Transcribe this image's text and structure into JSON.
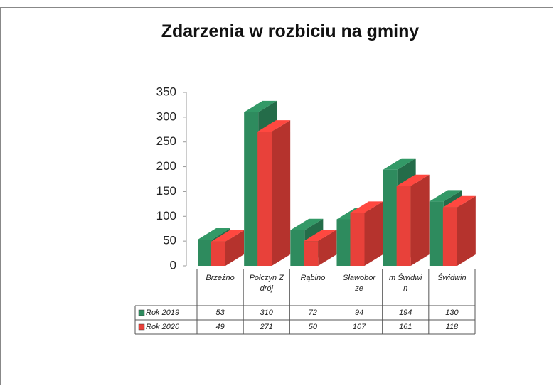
{
  "chart_data": {
    "type": "bar3d",
    "title": "Zdarzenia w rozbiciu na gminy",
    "categories": [
      "Brzeżno",
      "Połczyn Zdrój",
      "Rąbino",
      "Sławoborze",
      "m Świdwin",
      "Świdwin"
    ],
    "series": [
      {
        "name": "Rok 2019",
        "color": "#2e8b5e",
        "values": [
          53,
          310,
          72,
          94,
          194,
          130
        ]
      },
      {
        "name": "Rok 2020",
        "color": "#e8413a",
        "values": [
          49,
          271,
          50,
          107,
          161,
          118
        ]
      }
    ],
    "ylim": [
      0,
      350
    ],
    "yticks": [
      0,
      50,
      100,
      150,
      200,
      250,
      300,
      350
    ],
    "data_table": true
  }
}
